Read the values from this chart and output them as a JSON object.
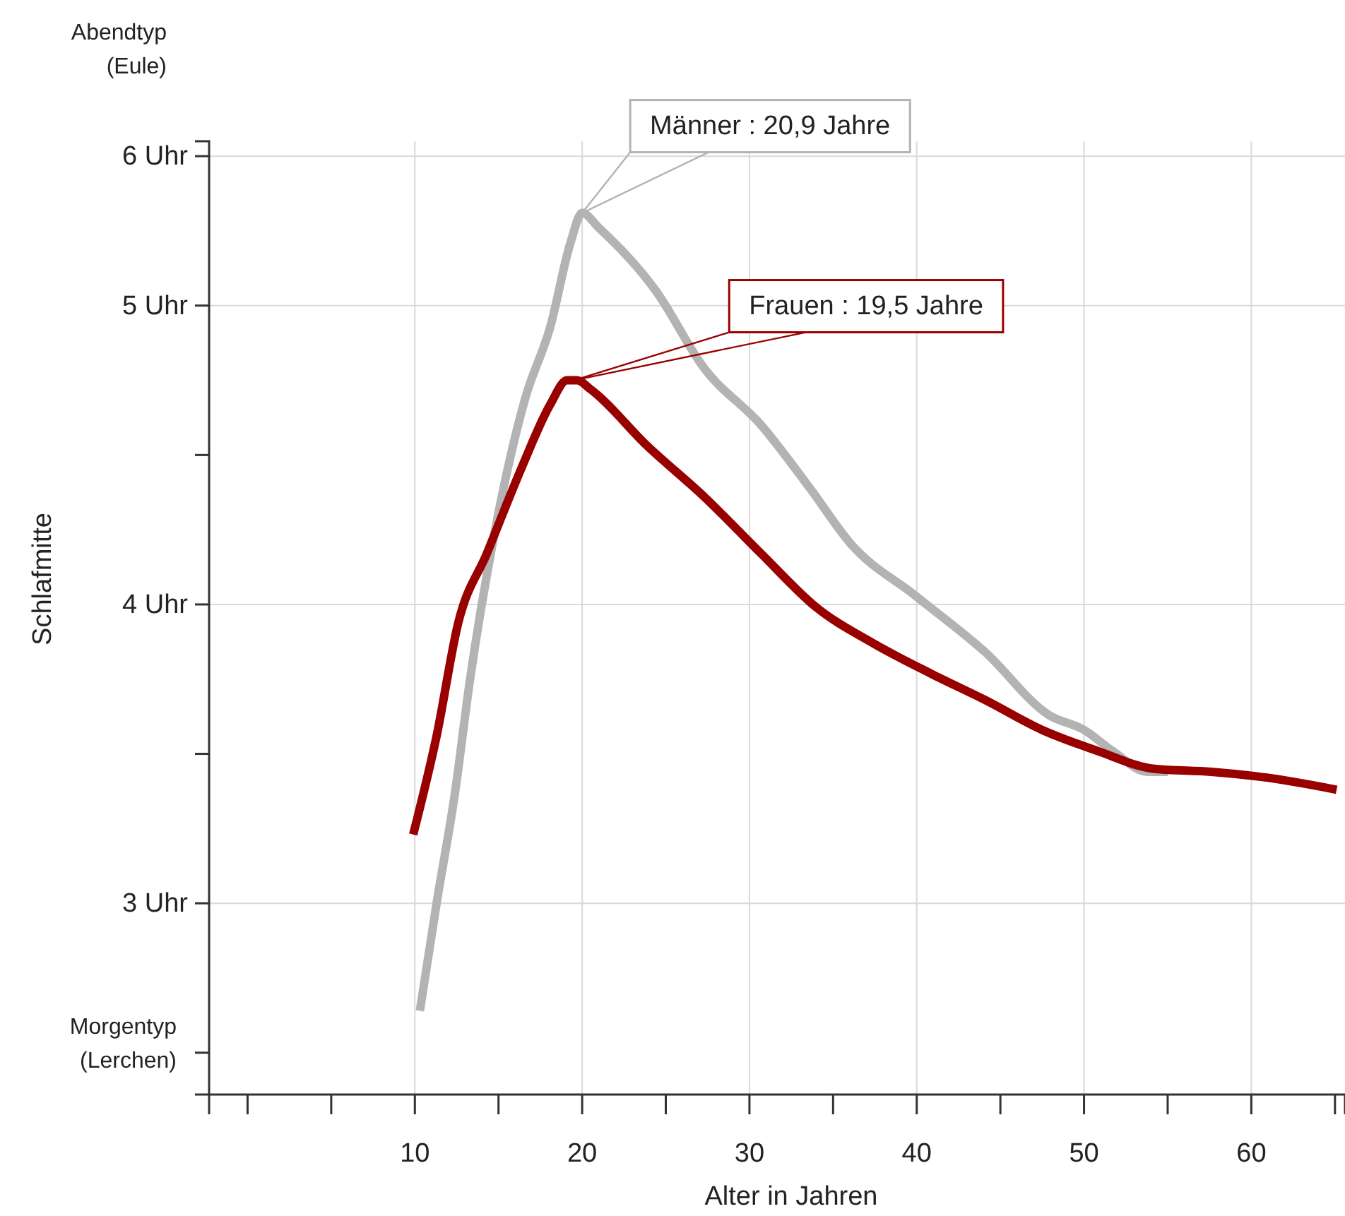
{
  "chart_data": {
    "type": "line",
    "xlabel": "Alter in Jahren",
    "ylabel": "Schlafmitte",
    "xlim": [
      -2.3,
      65.6
    ],
    "xticks": [
      {
        "value": 0,
        "label": null
      },
      {
        "value": 5,
        "label": null
      },
      10,
      {
        "value": 15,
        "label": null
      },
      20,
      {
        "value": 25,
        "label": null
      },
      30,
      {
        "value": 35,
        "label": null
      },
      40,
      {
        "value": 45,
        "label": null
      },
      50,
      {
        "value": 55,
        "label": null
      },
      60,
      {
        "value": 65,
        "label": null
      }
    ],
    "ylim": [
      2.36,
      5.55
    ],
    "yticks": [
      {
        "value": 2.5,
        "label": null
      },
      {
        "value": 3,
        "label": "3 Uhr"
      },
      {
        "value": 3.5,
        "label": null
      },
      {
        "value": 4,
        "label": "4 Uhr"
      },
      {
        "value": 4.5,
        "label": null
      },
      {
        "value": 5,
        "label": "5 Uhr"
      },
      {
        "value": 5.5,
        "label": "6 Uhr"
      }
    ],
    "grid": true,
    "line_style": "solid",
    "marker": "none",
    "series": [
      {
        "color": "#b3b3b3",
        "x": [
          10.3,
          11.3,
          12.4,
          13.3,
          14.7,
          16.6,
          18.1,
          19.3,
          20.0,
          21.0,
          24.4,
          27.3,
          30.7,
          33.6,
          36.1,
          39.9,
          44.1,
          47.9,
          50.0,
          51.7,
          53.8,
          55.0
        ],
        "values": [
          2.64,
          3.0,
          3.37,
          3.75,
          4.22,
          4.69,
          4.93,
          5.21,
          5.31,
          5.26,
          5.05,
          4.79,
          4.6,
          4.39,
          4.2,
          4.03,
          3.84,
          3.63,
          3.58,
          3.51,
          3.44,
          3.44
        ]
      },
      {
        "color": "#990000",
        "x": [
          9.9,
          11.3,
          12.6,
          14.3,
          16.4,
          18.1,
          19.1,
          19.7,
          20.5,
          23.9,
          27.3,
          30.7,
          34.0,
          37.4,
          40.8,
          44.1,
          47.5,
          50.8,
          54.2,
          57.6,
          61.0,
          65.1
        ],
        "values": [
          3.23,
          3.56,
          3.94,
          4.17,
          4.46,
          4.67,
          4.75,
          4.75,
          4.72,
          4.53,
          4.36,
          4.17,
          3.99,
          3.87,
          3.77,
          3.68,
          3.58,
          3.51,
          3.45,
          3.44,
          3.42,
          3.38
        ]
      }
    ],
    "annotations": [
      {
        "text": "Männer : 20,9 Jahre",
        "x": 20.0,
        "y": 5.31
      },
      {
        "text": "Frauen : 19,5 Jahre",
        "x": 19.5,
        "y": 4.75
      },
      "Abendtyp\n(Eule)",
      "Morgentyp\n(Lerchen)"
    ]
  }
}
